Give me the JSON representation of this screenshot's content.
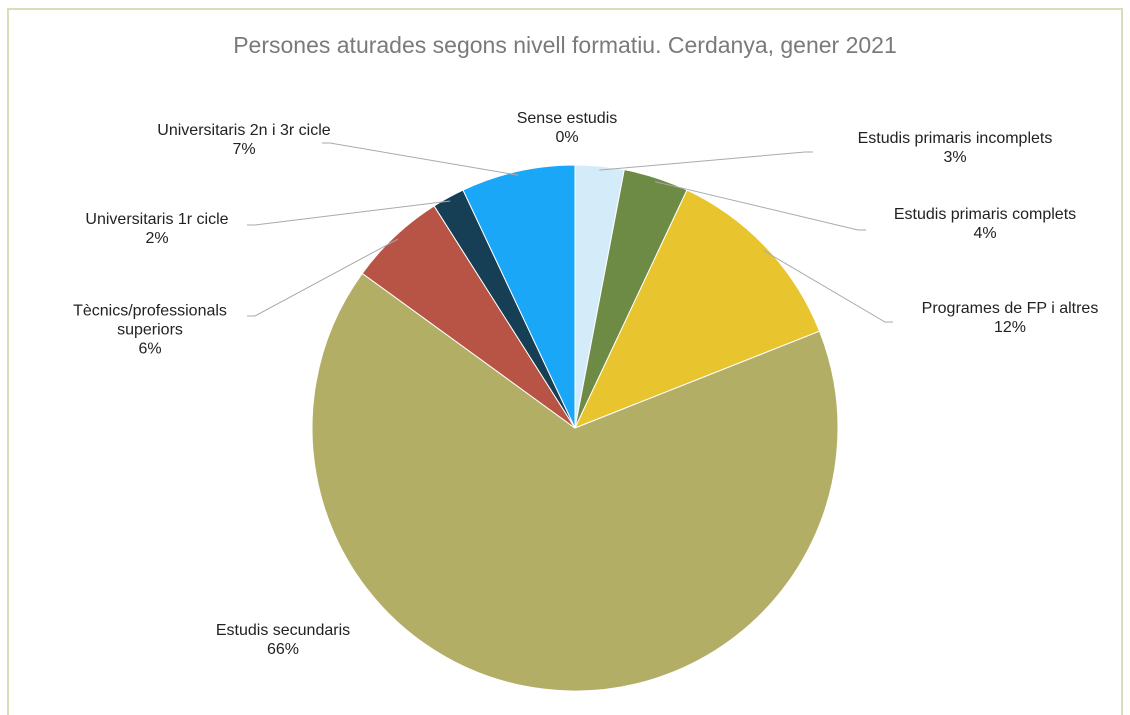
{
  "chart_data": {
    "type": "pie",
    "title": "Persones aturades segons nivell formatiu. Cerdanya, gener 2021",
    "categories": [
      "Sense estudis",
      "Estudis primaris incomplets",
      "Estudis primaris complets",
      "Programes de FP i altres",
      "Estudis secundaris",
      "Tècnics/professionals superiors",
      "Universitaris 1r cicle",
      "Universitaris 2n i 3r cicle"
    ],
    "values": [
      0,
      3,
      4,
      12,
      66,
      6,
      2,
      7
    ],
    "value_labels": [
      "0%",
      "3%",
      "4%",
      "12%",
      "66%",
      "6%",
      "2%",
      "7%"
    ],
    "colors": [
      "#1f4e79",
      "#d4ecfa",
      "#6e8b45",
      "#e8c52e",
      "#b3ae66",
      "#b85445",
      "#163f55",
      "#1ba7f8"
    ]
  }
}
